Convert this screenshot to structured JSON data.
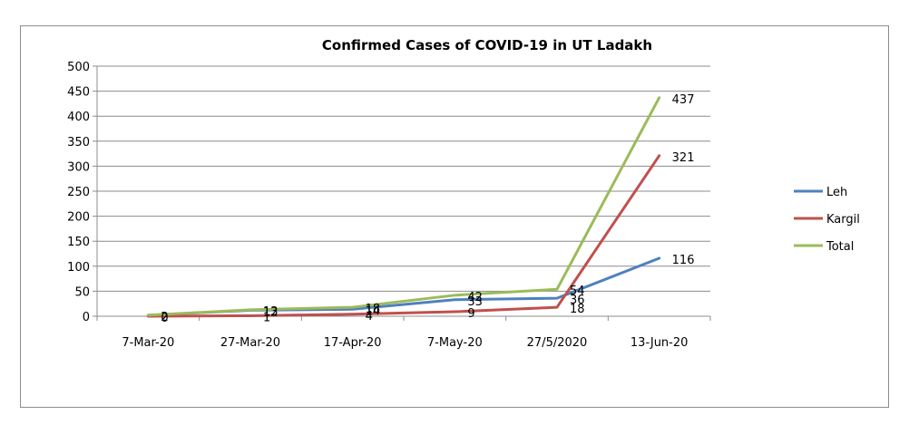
{
  "chart_data": {
    "type": "line",
    "title": "Confirmed Cases of COVID-19 in UT Ladakh",
    "xlabel": "",
    "ylabel": "",
    "ylim": [
      0,
      500
    ],
    "yticks": [
      0,
      50,
      100,
      150,
      200,
      250,
      300,
      350,
      400,
      450,
      500
    ],
    "grid": true,
    "legend_position": "right",
    "categories": [
      "7-Mar-20",
      "27-Mar-20",
      "17-Apr-20",
      "7-May-20",
      "27/5/2020",
      "13-Jun-20"
    ],
    "series": [
      {
        "name": "Leh",
        "color": "#4f81bd",
        "values": [
          2,
          12,
          14,
          33,
          36,
          116
        ]
      },
      {
        "name": "Kargil",
        "color": "#c0504d",
        "values": [
          0,
          1,
          4,
          9,
          18,
          321
        ]
      },
      {
        "name": "Total",
        "color": "#9bbb59",
        "values": [
          2,
          13,
          18,
          42,
          54,
          437
        ]
      }
    ]
  }
}
